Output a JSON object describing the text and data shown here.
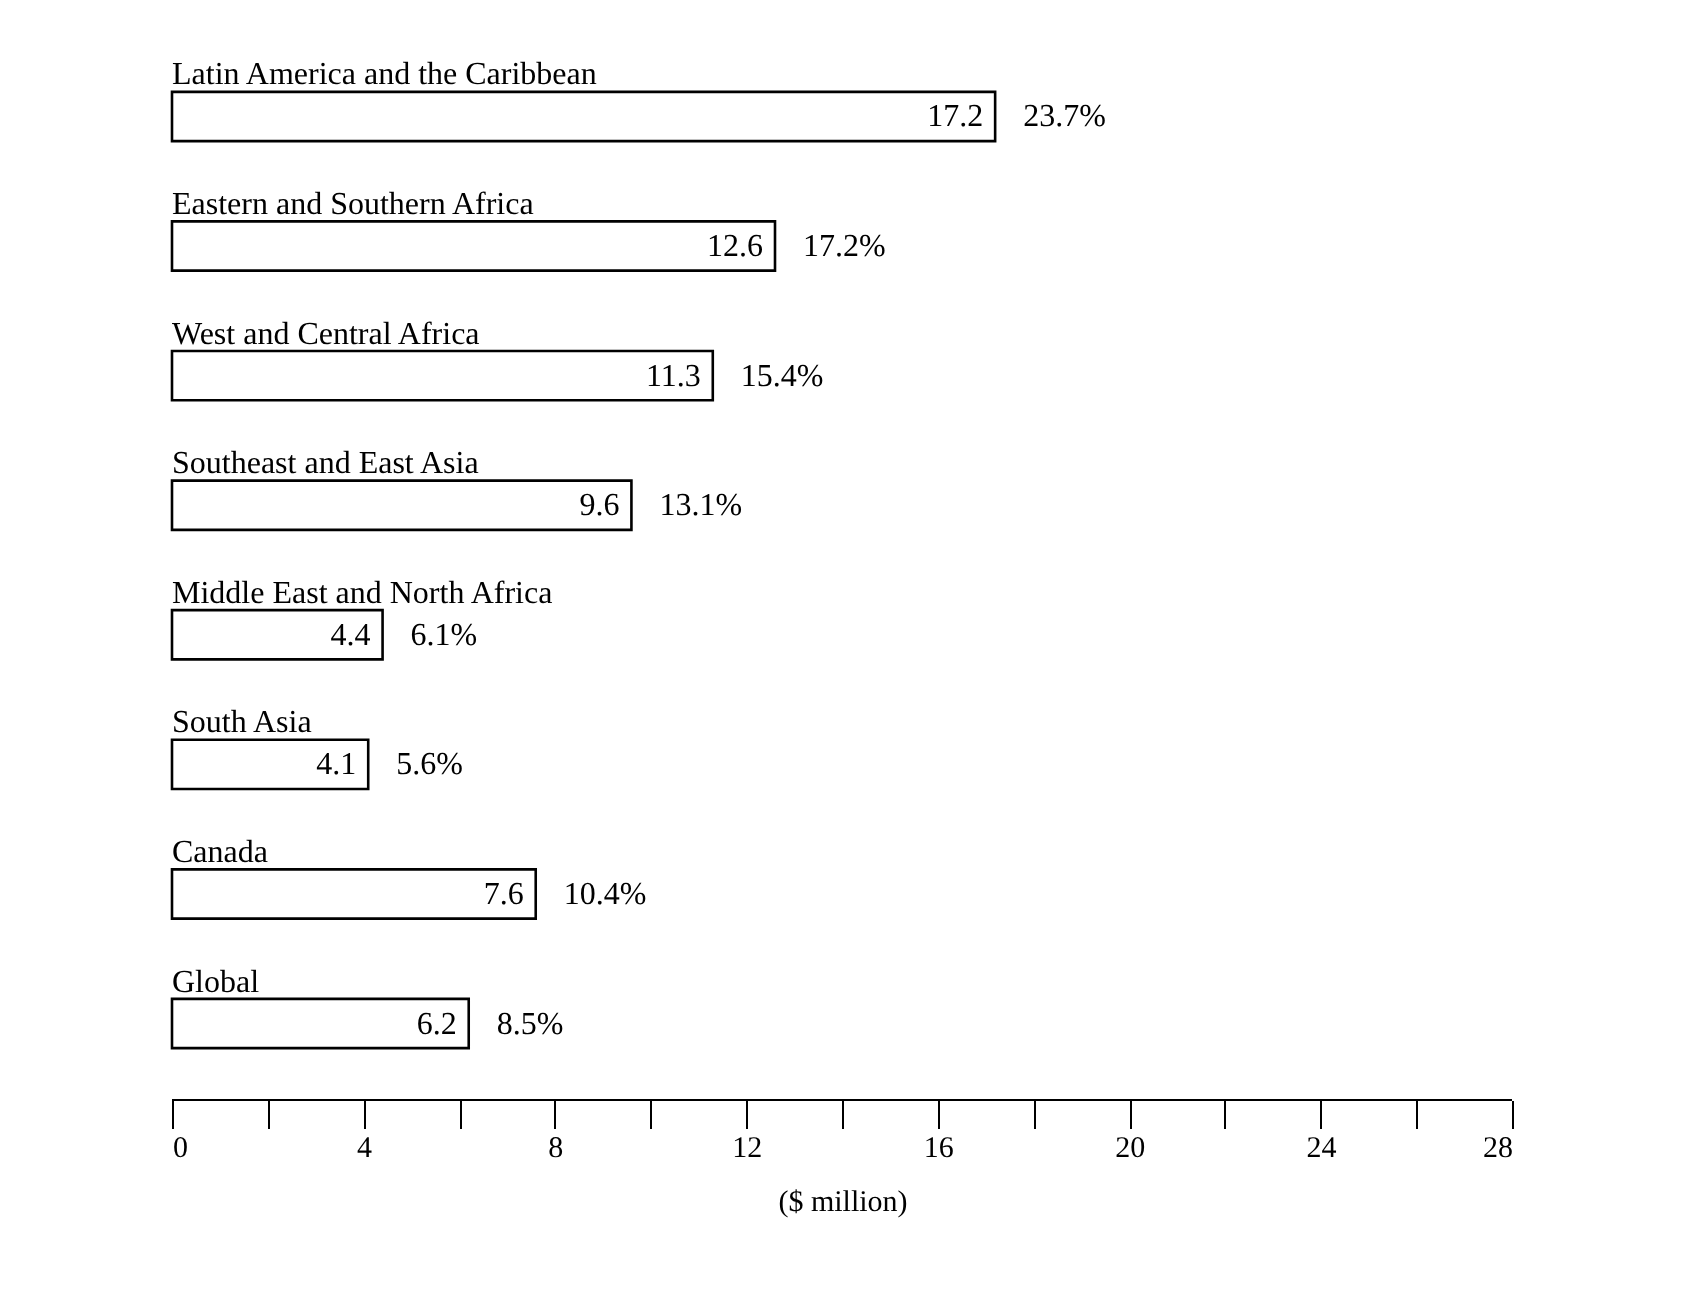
{
  "chart_data": {
    "type": "bar",
    "orientation": "horizontal",
    "xlabel": "($ million)",
    "categories": [
      "Latin America and the Caribbean",
      "Eastern and Southern Africa",
      "West and Central Africa",
      "Southeast and East Asia",
      "Middle East and North Africa",
      "South Asia",
      "Canada",
      "Global"
    ],
    "values": [
      17.2,
      12.6,
      11.3,
      9.6,
      4.4,
      4.1,
      7.6,
      6.2
    ],
    "color": "#ffffff",
    "data_labels": true,
    "annotations": [
      {
        "text": "23.7%",
        "x": 17.2,
        "y": "Latin America and the Caribbean"
      },
      {
        "text": "17.2%",
        "x": 12.6,
        "y": "Eastern and Southern Africa"
      },
      {
        "text": "15.4%",
        "x": 11.3,
        "y": "West and Central Africa"
      },
      {
        "text": "13.1%",
        "x": 9.6,
        "y": "Southeast and East Asia"
      },
      {
        "text": "6.1%",
        "x": 4.4,
        "y": "Middle East and North Africa"
      },
      {
        "text": "5.6%",
        "x": 4.1,
        "y": "South Asia"
      },
      {
        "text": "10.4%",
        "x": 7.6,
        "y": "Canada"
      },
      {
        "text": "8.5%",
        "x": 6.2,
        "y": "Global"
      }
    ],
    "xlim": [
      0,
      28
    ],
    "xticks": [
      0,
      {
        "value": 2,
        "label": null
      },
      4,
      {
        "value": 6,
        "label": null
      },
      8,
      {
        "value": 10,
        "label": null
      },
      12,
      {
        "value": 14,
        "label": null
      },
      16,
      {
        "value": 18,
        "label": null
      },
      20,
      {
        "value": 22,
        "label": null
      },
      24,
      {
        "value": 26,
        "label": null
      },
      28
    ],
    "grid": false
  }
}
